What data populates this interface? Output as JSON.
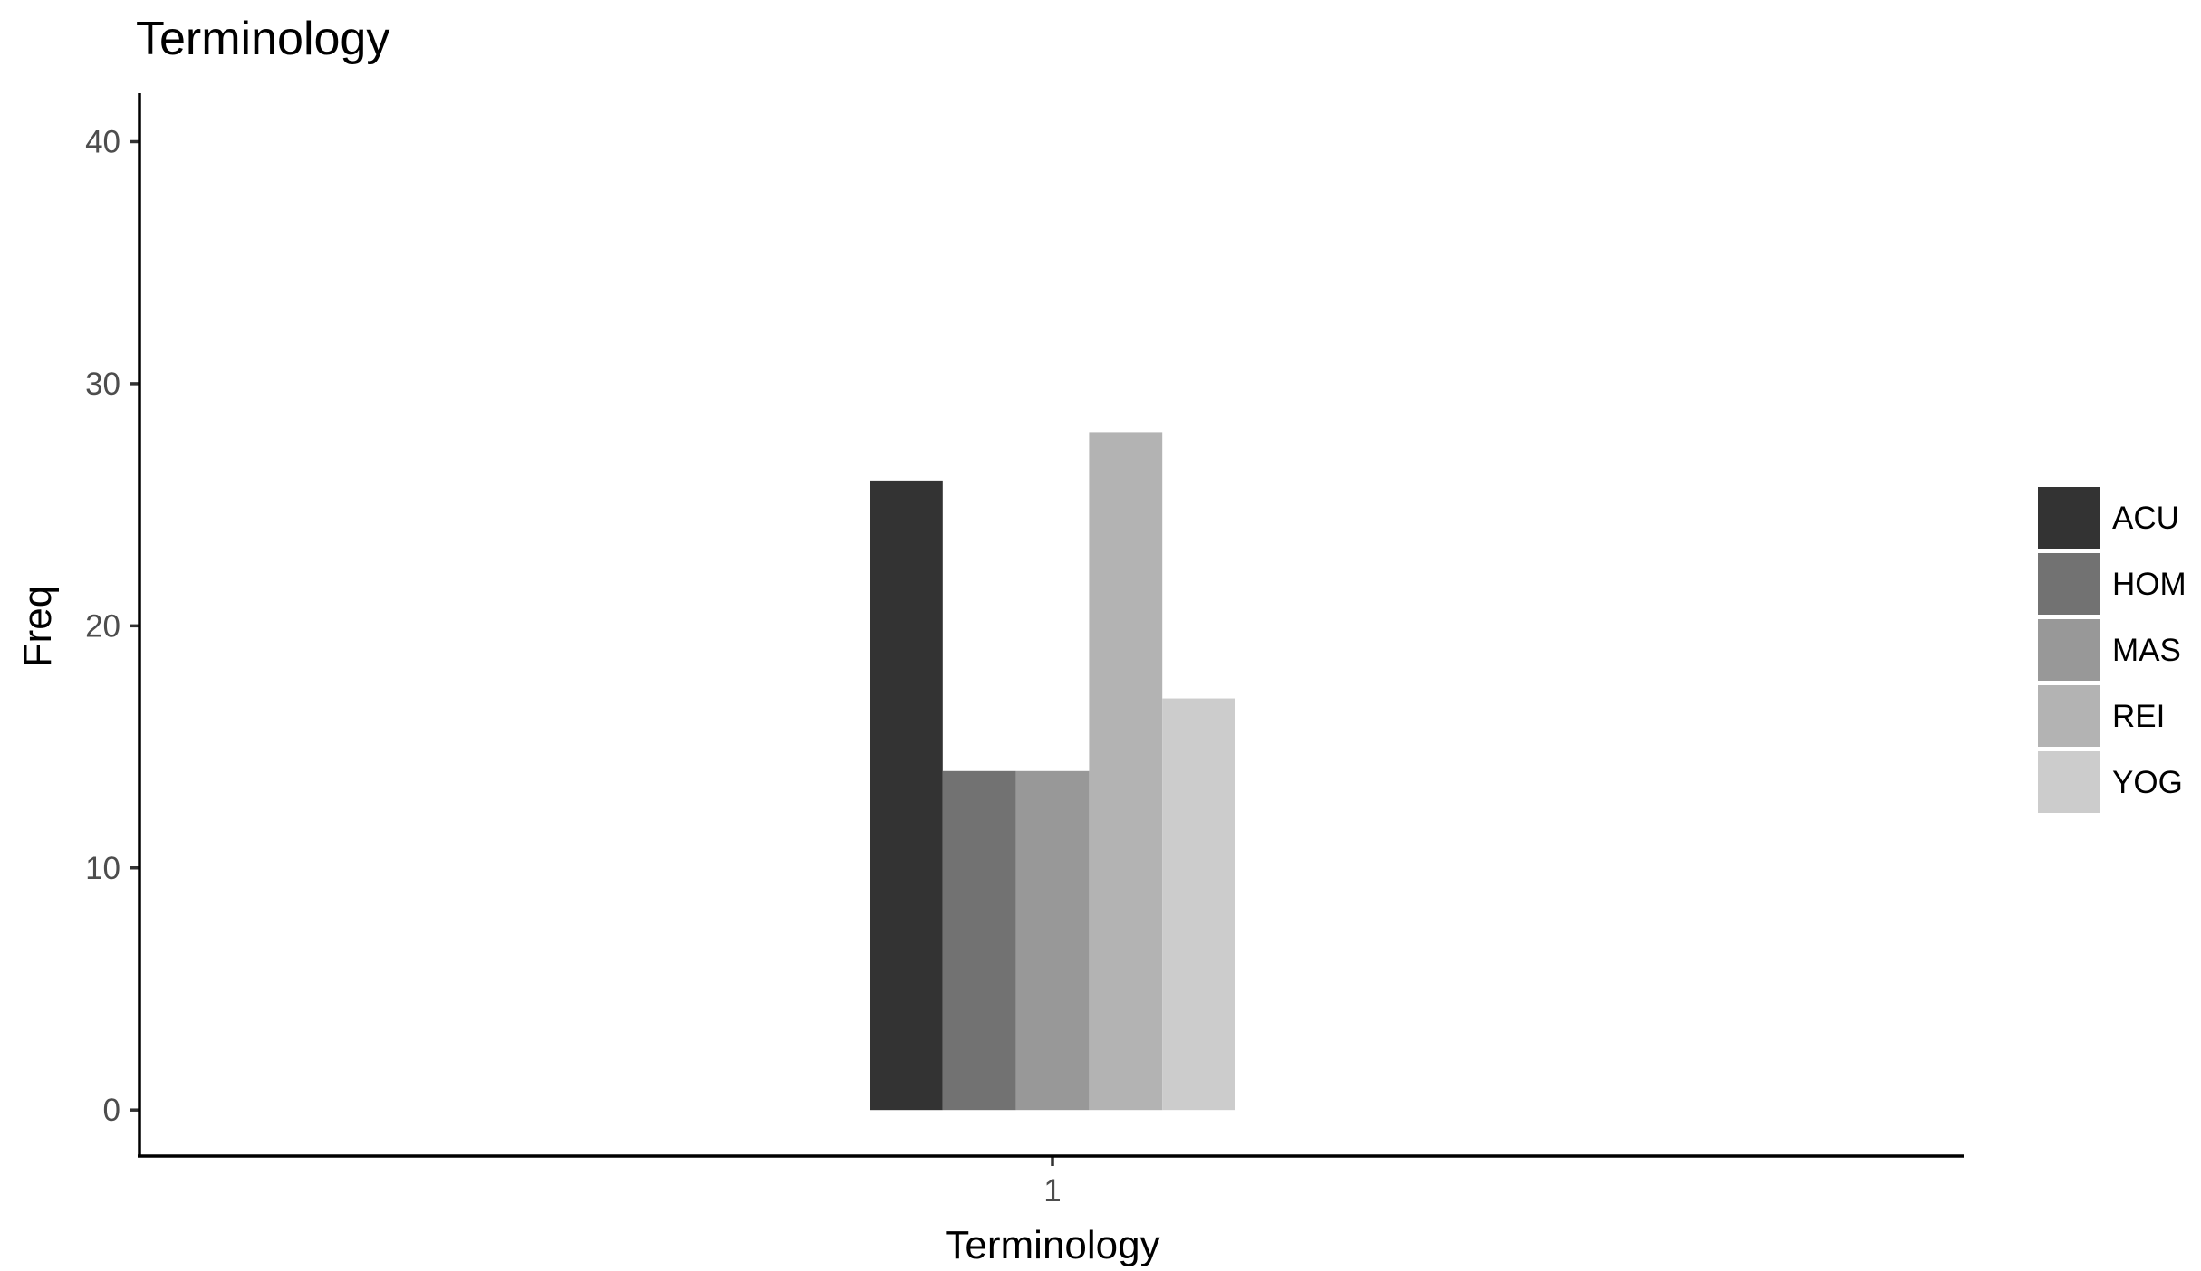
{
  "chart_data": {
    "type": "bar",
    "title": "Terminology",
    "xlabel": "Terminology",
    "ylabel": "Freq",
    "categories": [
      "1"
    ],
    "ylim": [
      -1.9,
      42
    ],
    "yticks": [
      0,
      10,
      20,
      30,
      40
    ],
    "grid": false,
    "legend_position": "right",
    "series": [
      {
        "name": "ACU",
        "values": [
          26
        ],
        "color": "#333333"
      },
      {
        "name": "HOM",
        "values": [
          14
        ],
        "color": "#727272"
      },
      {
        "name": "MAS",
        "values": [
          14
        ],
        "color": "#989898"
      },
      {
        "name": "REI",
        "values": [
          28
        ],
        "color": "#b3b3b3"
      },
      {
        "name": "YOG",
        "values": [
          17
        ],
        "color": "#cccccc"
      }
    ]
  }
}
